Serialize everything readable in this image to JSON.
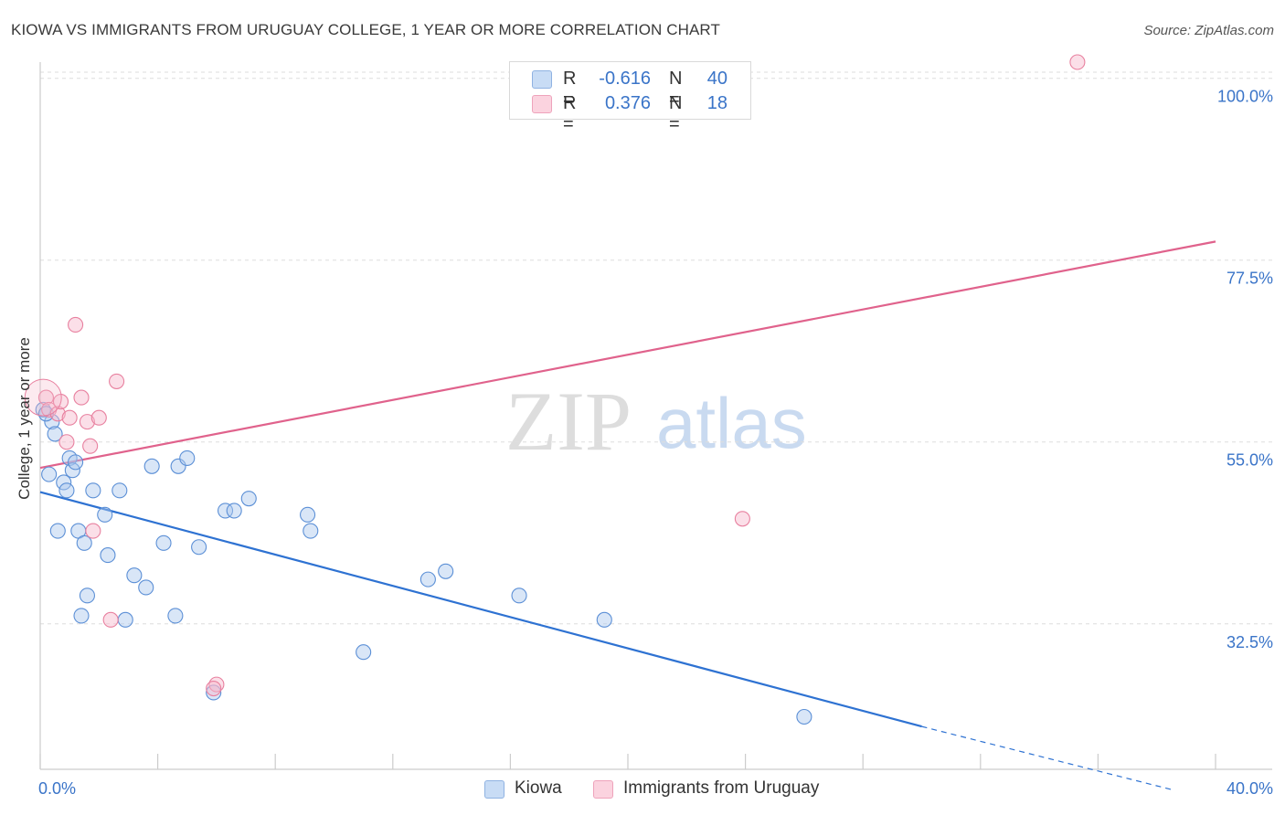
{
  "title": "KIOWA VS IMMIGRANTS FROM URUGUAY COLLEGE, 1 YEAR OR MORE CORRELATION CHART",
  "source": "Source: ZipAtlas.com",
  "watermark": {
    "zip": "ZIP",
    "atlas": "atlas"
  },
  "legend": {
    "r_label": "R =",
    "n_label": "N =",
    "rows": [
      {
        "r": "-0.616",
        "n": "40",
        "color": "#aac8ee"
      },
      {
        "r": "0.376",
        "n": "18",
        "color": "#f6b8cb"
      }
    ]
  },
  "chart_data": {
    "type": "scatter",
    "title": "KIOWA VS IMMIGRANTS FROM URUGUAY COLLEGE, 1 YEAR OR MORE CORRELATION CHART",
    "xlabel": "",
    "ylabel": "College, 1 year or more",
    "xlim": [
      0,
      40
    ],
    "ylim": [
      14.5,
      102
    ],
    "x_tick_labels": [
      "0.0%",
      "40.0%"
    ],
    "y_ticks": [
      32.5,
      55.0,
      77.5,
      100.0
    ],
    "y_tick_labels": [
      "32.5%",
      "55.0%",
      "77.5%",
      "100.0%"
    ],
    "grid": true,
    "series": [
      {
        "name": "Kiowa",
        "color": "#5b8fd6",
        "fill": "#aac8ee",
        "trend": {
          "x0": 0,
          "y0": 48.8,
          "x1": 30,
          "y1": 19.8,
          "dash_to_x": 38.5,
          "dash_to_y": 12.0,
          "color": "#2e72d2"
        },
        "points": [
          [
            0.1,
            59.0
          ],
          [
            0.4,
            57.5
          ],
          [
            0.5,
            56.0
          ],
          [
            0.3,
            51.0
          ],
          [
            0.6,
            44.0
          ],
          [
            0.8,
            50.0
          ],
          [
            0.9,
            49.0
          ],
          [
            1.0,
            53.0
          ],
          [
            1.1,
            51.5
          ],
          [
            1.2,
            52.5
          ],
          [
            1.3,
            44.0
          ],
          [
            1.4,
            33.5
          ],
          [
            1.5,
            42.5
          ],
          [
            1.6,
            36.0
          ],
          [
            1.8,
            49.0
          ],
          [
            2.2,
            46.0
          ],
          [
            2.3,
            41.0
          ],
          [
            2.7,
            49.0
          ],
          [
            2.9,
            33.0
          ],
          [
            3.2,
            38.5
          ],
          [
            3.6,
            37.0
          ],
          [
            3.8,
            52.0
          ],
          [
            4.2,
            42.5
          ],
          [
            4.6,
            33.5
          ],
          [
            4.7,
            52.0
          ],
          [
            5.0,
            53.0
          ],
          [
            5.4,
            42.0
          ],
          [
            5.9,
            24.0
          ],
          [
            6.3,
            46.5
          ],
          [
            6.6,
            46.5
          ],
          [
            7.1,
            48.0
          ],
          [
            9.1,
            46.0
          ],
          [
            9.2,
            44.0
          ],
          [
            11.0,
            29.0
          ],
          [
            13.2,
            38.0
          ],
          [
            13.8,
            39.0
          ],
          [
            16.3,
            36.0
          ],
          [
            19.2,
            33.0
          ],
          [
            26.0,
            21.0
          ],
          [
            0.2,
            58.5
          ]
        ]
      },
      {
        "name": "Immigrants from Uruguay",
        "color": "#e8809f",
        "fill": "#f6b8cb",
        "trend": {
          "x0": 0,
          "y0": 51.8,
          "x1": 40,
          "y1": 79.8,
          "color": "#e0628c"
        },
        "points": [
          [
            0.2,
            60.5
          ],
          [
            0.3,
            59.0
          ],
          [
            0.6,
            58.5
          ],
          [
            0.7,
            60.0
          ],
          [
            0.9,
            55.0
          ],
          [
            1.0,
            58.0
          ],
          [
            1.2,
            69.5
          ],
          [
            1.4,
            60.5
          ],
          [
            1.6,
            57.5
          ],
          [
            1.7,
            54.5
          ],
          [
            1.8,
            44.0
          ],
          [
            2.0,
            58.0
          ],
          [
            2.4,
            33.0
          ],
          [
            2.6,
            62.5
          ],
          [
            6.0,
            25.0
          ],
          [
            5.9,
            24.5
          ],
          [
            23.9,
            45.5
          ],
          [
            35.3,
            102.0
          ]
        ]
      }
    ]
  },
  "bottom_legend": {
    "items": [
      {
        "label": "Kiowa",
        "color": "#aac8ee"
      },
      {
        "label": "Immigrants from Uruguay",
        "color": "#f6b8cb"
      }
    ]
  }
}
